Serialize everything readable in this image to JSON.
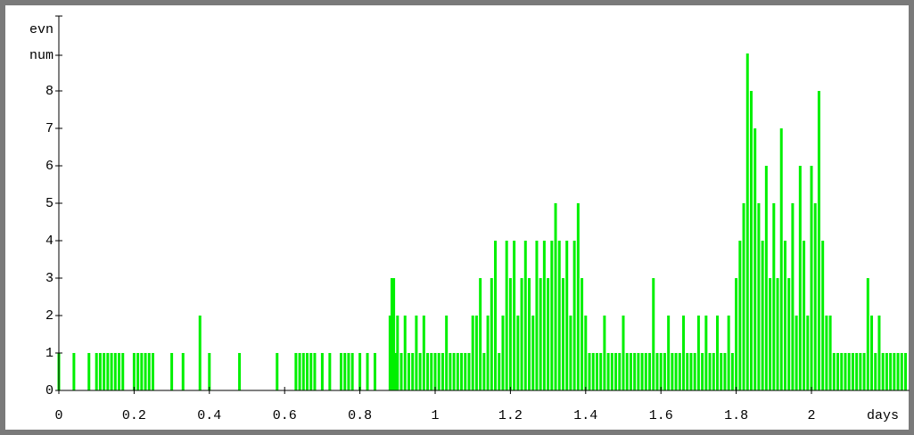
{
  "chart_data": {
    "type": "stem",
    "y_label": [
      "evn",
      "num"
    ],
    "x_label": "days",
    "color": "#00f000",
    "xlim": [
      0,
      2.26
    ],
    "ylim": [
      0,
      10
    ],
    "xticks": [
      0,
      0.2,
      0.4,
      0.6,
      0.8,
      1,
      1.2,
      1.4,
      1.6,
      1.8,
      2
    ],
    "yticks": [
      0,
      1,
      2,
      3,
      4,
      5,
      6,
      7,
      8
    ],
    "x": [
      0,
      0.04,
      0.08,
      0.1,
      0.11,
      0.12,
      0.13,
      0.14,
      0.15,
      0.16,
      0.17,
      0.2,
      0.21,
      0.22,
      0.23,
      0.24,
      0.25,
      0.3,
      0.33,
      0.375,
      0.4,
      0.48,
      0.58,
      0.63,
      0.64,
      0.65,
      0.66,
      0.67,
      0.68,
      0.7,
      0.72,
      0.75,
      0.76,
      0.77,
      0.78,
      0.8,
      0.82,
      0.84,
      0.88,
      0.885,
      0.89,
      0.895,
      0.9,
      0.91,
      0.92,
      0.93,
      0.94,
      0.95,
      0.96,
      0.97,
      0.98,
      0.99,
      1,
      1.01,
      1.02,
      1.03,
      1.04,
      1.05,
      1.06,
      1.07,
      1.08,
      1.09,
      1.1,
      1.11,
      1.12,
      1.13,
      1.14,
      1.15,
      1.16,
      1.17,
      1.18,
      1.19,
      1.2,
      1.21,
      1.22,
      1.23,
      1.24,
      1.25,
      1.26,
      1.27,
      1.28,
      1.29,
      1.3,
      1.31,
      1.32,
      1.33,
      1.34,
      1.35,
      1.36,
      1.37,
      1.38,
      1.39,
      1.4,
      1.41,
      1.42,
      1.43,
      1.44,
      1.45,
      1.46,
      1.47,
      1.48,
      1.49,
      1.5,
      1.51,
      1.52,
      1.53,
      1.54,
      1.55,
      1.56,
      1.57,
      1.58,
      1.59,
      1.6,
      1.61,
      1.62,
      1.63,
      1.64,
      1.65,
      1.66,
      1.67,
      1.68,
      1.69,
      1.7,
      1.71,
      1.72,
      1.73,
      1.74,
      1.75,
      1.76,
      1.77,
      1.78,
      1.79,
      1.8,
      1.81,
      1.82,
      1.83,
      1.84,
      1.85,
      1.86,
      1.87,
      1.88,
      1.89,
      1.9,
      1.91,
      1.92,
      1.93,
      1.94,
      1.95,
      1.96,
      1.97,
      1.98,
      1.99,
      2,
      2.01,
      2.02,
      2.03,
      2.04,
      2.05,
      2.06,
      2.07,
      2.08,
      2.09,
      2.1,
      2.11,
      2.12,
      2.13,
      2.14,
      2.15,
      2.16,
      2.17,
      2.18,
      2.19,
      2.2,
      2.21,
      2.22,
      2.23,
      2.24,
      2.25
    ],
    "values": [
      1,
      1,
      1,
      1,
      1,
      1,
      1,
      1,
      1,
      1,
      1,
      1,
      1,
      1,
      1,
      1,
      1,
      1,
      1,
      2,
      1,
      1,
      1,
      1,
      1,
      1,
      1,
      1,
      1,
      1,
      1,
      1,
      1,
      1,
      1,
      1,
      1,
      1,
      2,
      3,
      3,
      1,
      2,
      1,
      2,
      1,
      1,
      2,
      1,
      2,
      1,
      1,
      1,
      1,
      1,
      2,
      1,
      1,
      1,
      1,
      1,
      1,
      2,
      2,
      3,
      1,
      2,
      3,
      4,
      1,
      2,
      4,
      3,
      4,
      2,
      3,
      4,
      3,
      2,
      4,
      3,
      4,
      3,
      4,
      5,
      4,
      3,
      4,
      2,
      4,
      5,
      3,
      2,
      1,
      1,
      1,
      1,
      2,
      1,
      1,
      1,
      1,
      2,
      1,
      1,
      1,
      1,
      1,
      1,
      1,
      3,
      1,
      1,
      1,
      2,
      1,
      1,
      1,
      2,
      1,
      1,
      1,
      2,
      1,
      2,
      1,
      1,
      2,
      1,
      1,
      2,
      1,
      3,
      4,
      5,
      9,
      8,
      7,
      5,
      4,
      6,
      3,
      5,
      3,
      7,
      4,
      3,
      5,
      2,
      6,
      4,
      2,
      6,
      5,
      8,
      4,
      2,
      2,
      1,
      1,
      1,
      1,
      1,
      1,
      1,
      1,
      1,
      3,
      2,
      1,
      2,
      1,
      1,
      1,
      1,
      1,
      1,
      1
    ]
  }
}
